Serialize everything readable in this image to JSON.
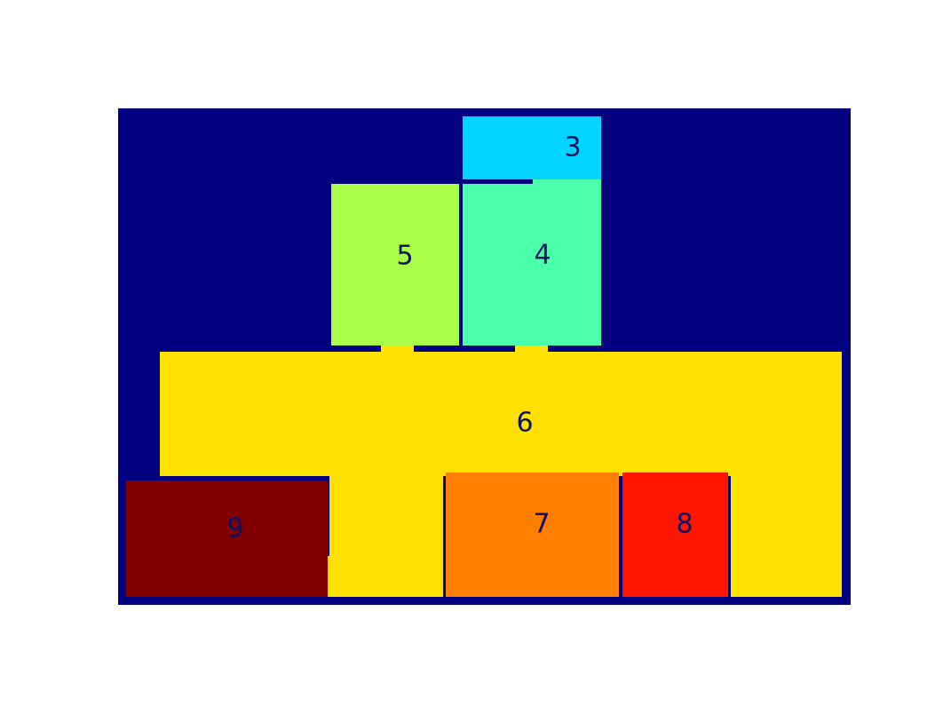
{
  "floorplan": {
    "background_color": "#000080",
    "rooms": [
      {
        "id": "3",
        "label": "3",
        "color": "#00D4FF"
      },
      {
        "id": "4",
        "label": "4",
        "color": "#4CFFAA"
      },
      {
        "id": "5",
        "label": "5",
        "color": "#A8FF4A"
      },
      {
        "id": "6",
        "label": "6",
        "color": "#FFE100"
      },
      {
        "id": "7",
        "label": "7",
        "color": "#FF7F00"
      },
      {
        "id": "8",
        "label": "8",
        "color": "#FF1500"
      },
      {
        "id": "9",
        "label": "9",
        "color": "#800000"
      }
    ]
  }
}
